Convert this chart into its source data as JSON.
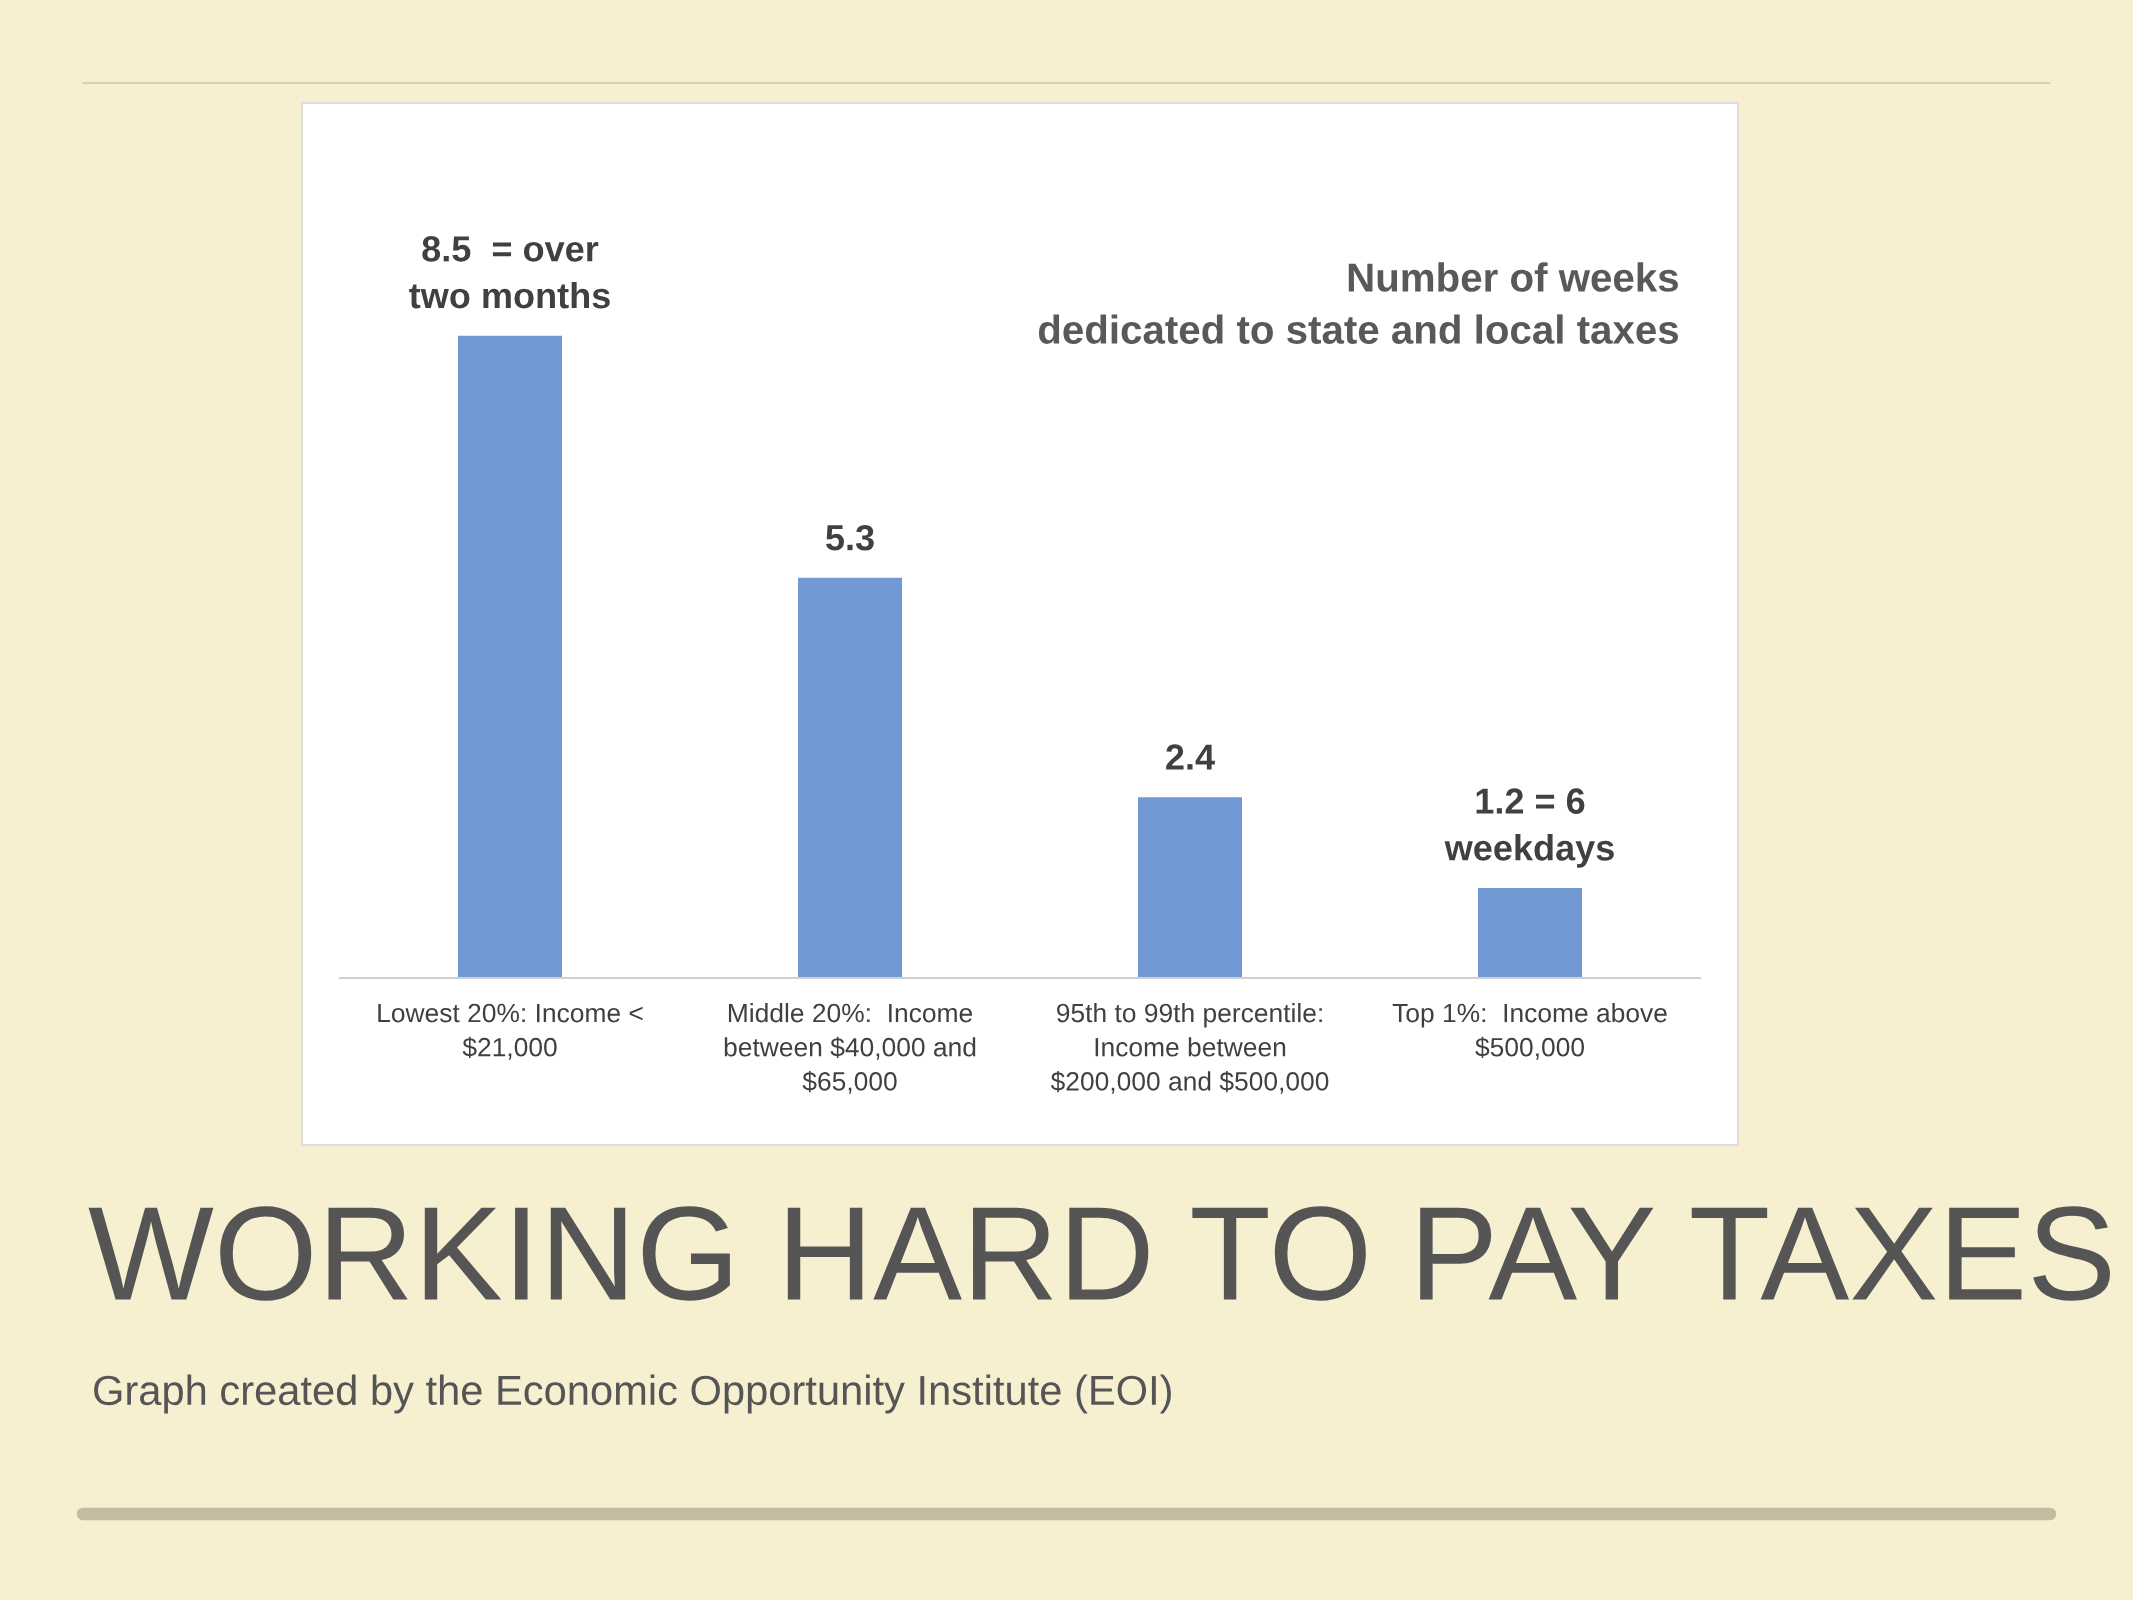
{
  "chart_data": {
    "type": "bar",
    "title": "WORKING HARD TO PAY TAXES",
    "subtitle": "Number of weeks\ndedicated to state and local taxes",
    "categories": [
      "Lowest 20%: Income <\n$21,000",
      "Middle 20%:  Income\nbetween $40,000 and\n$65,000",
      "95th to 99th percentile:\nIncome between\n$200,000 and $500,000",
      "Top 1%:  Income above\n$500,000"
    ],
    "values": [
      8.5,
      5.3,
      2.4,
      1.2
    ],
    "value_labels": [
      "8.5  = over\ntwo months",
      "5.3",
      "2.4",
      "1.2 = 6\nweekdays"
    ],
    "color": "#7199d4",
    "annotations": [
      "Graph created by the Economic Opportunity Institute (EOI)"
    ]
  }
}
